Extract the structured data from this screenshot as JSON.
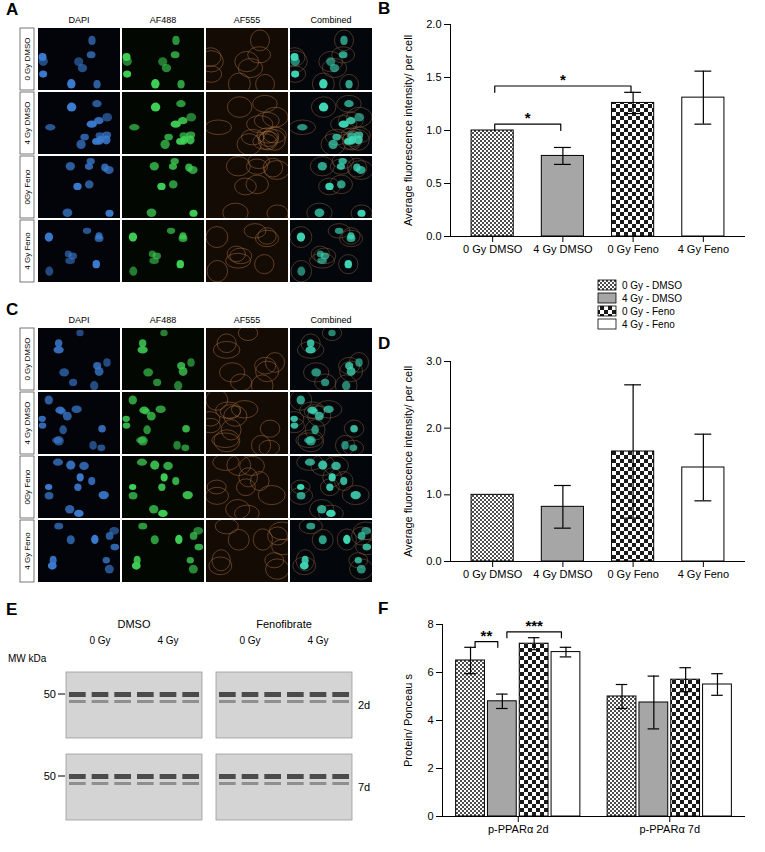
{
  "micrographs": [
    {
      "panel": "A",
      "columns": [
        "DAPI",
        "AF488",
        "AF555",
        "Combined"
      ],
      "rows": [
        "0 Gy DMSO",
        "4 Gy DMSO",
        "0Gy Feno",
        "4 Gy Feno"
      ]
    },
    {
      "panel": "C",
      "columns": [
        "DAPI",
        "AF488",
        "AF555",
        "Combined"
      ],
      "rows": [
        "0 Gy DMSO",
        "4 Gy DMSO",
        "0Gy Feno",
        "4 Gy Feno"
      ]
    }
  ],
  "blot": {
    "panel": "E",
    "mw_label": "MW kDa",
    "groups": [
      "DMSO",
      "Fenofibrate"
    ],
    "doses": [
      "0 Gy",
      "4 Gy"
    ],
    "rows": [
      {
        "mw": 50,
        "label": "2d"
      },
      {
        "mw": 50,
        "label": "7d"
      }
    ]
  },
  "chart_data": [
    {
      "panel": "B",
      "type": "bar",
      "y_label": "Average fluorescence intensity/ per cell",
      "categories": [
        "0 Gy DMSO",
        "4 Gy DMSO",
        "0 Gy Feno",
        "4 Gy Feno"
      ],
      "values": [
        1.0,
        0.76,
        1.26,
        1.31
      ],
      "errors": [
        0,
        0.08,
        0.1,
        0.25
      ],
      "colors": [
        "#4d4d4d",
        "#a6a6a6",
        "#1a1a1a",
        "#ffffff"
      ],
      "ylim": [
        0,
        2
      ],
      "yticks": [
        {
          "value": 0,
          "label": "0.0"
        },
        {
          "value": 0.5,
          "label": "0.5"
        },
        {
          "value": 1,
          "label": "1.0"
        },
        {
          "value": 1.5,
          "label": "1.5"
        },
        {
          "value": 2,
          "label": "2.0"
        }
      ],
      "grid": false,
      "significance": [
        {
          "from": "0 Gy DMSO",
          "to": "4 Gy DMSO",
          "label": "*"
        },
        {
          "from": "0 Gy DMSO",
          "to": "0 Gy Feno",
          "label": "*"
        }
      ]
    },
    {
      "panel": "D",
      "type": "bar",
      "y_label": "Average fluorescence intensity/ per cell",
      "categories": [
        "0 Gy DMSO",
        "4 Gy DMSO",
        "0 Gy Feno",
        "4 Gy Feno"
      ],
      "values": [
        1.0,
        0.82,
        1.65,
        1.41
      ],
      "errors": [
        0,
        0.32,
        1.0,
        0.5
      ],
      "colors": [
        "#4d4d4d",
        "#a6a6a6",
        "#1a1a1a",
        "#ffffff"
      ],
      "ylim": [
        0,
        3
      ],
      "yticks": [
        {
          "value": 0,
          "label": "0.0"
        },
        {
          "value": 1,
          "label": "1.0"
        },
        {
          "value": 2,
          "label": "2.0"
        },
        {
          "value": 3,
          "label": "3.0"
        }
      ],
      "grid": false
    },
    {
      "panel": "F",
      "type": "bar",
      "y_label": "Protein/ Ponceau s",
      "categories": [
        "p-PPARα 2d",
        "p-PPARα 7d"
      ],
      "series": [
        {
          "name": "0 Gy - DMSO",
          "color": "#4d4d4d",
          "values": [
            6.5,
            5.0
          ],
          "errors": [
            0.55,
            0.5
          ]
        },
        {
          "name": "4 Gy - DMSO",
          "color": "#a6a6a6",
          "values": [
            4.8,
            4.75
          ],
          "errors": [
            0.3,
            1.1
          ]
        },
        {
          "name": "0 Gy - Feno",
          "color": "#1a1a1a",
          "values": [
            7.2,
            5.7
          ],
          "errors": [
            0.25,
            0.5
          ]
        },
        {
          "name": "4 Gy - Feno",
          "color": "#ffffff",
          "values": [
            6.85,
            5.5
          ],
          "errors": [
            0.2,
            0.45
          ]
        }
      ],
      "ylim": [
        0,
        8
      ],
      "yticks": [
        0,
        2,
        4,
        6,
        8
      ],
      "grid": false,
      "legend": "outside",
      "significance": [
        {
          "category": "p-PPARα 2d",
          "from": "0 Gy - DMSO",
          "to": "4 Gy - DMSO",
          "label": "**"
        },
        {
          "category": "p-PPARα 2d",
          "from": "4 Gy - DMSO",
          "to": "4 Gy - Feno",
          "label": "***"
        }
      ]
    }
  ]
}
